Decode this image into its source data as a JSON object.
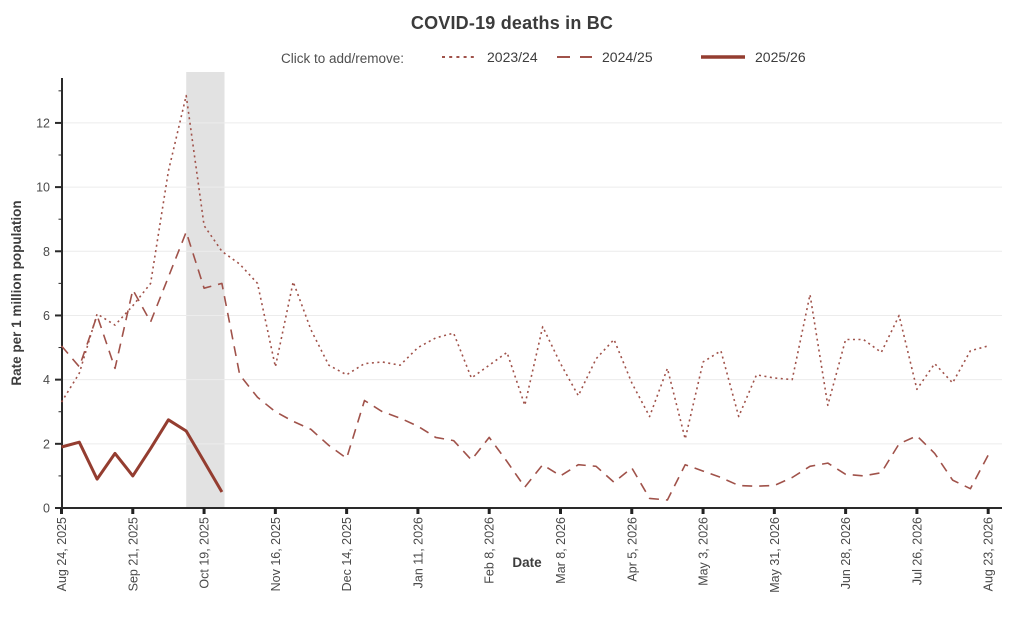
{
  "chart_data": {
    "type": "line",
    "title": "COVID-19 deaths in BC",
    "xlabel": "Date",
    "ylabel": "Rate per 1 million population",
    "legend_prompt": "Click to add/remove:",
    "legend_position": "top",
    "x_unit": "weekly",
    "x_ticks_every_n_weeks": 4,
    "x_tick_labels": [
      "Aug 24, 2025",
      "Sep 21, 2025",
      "Oct 19, 2025",
      "Nov 16, 2025",
      "Dec 14, 2025",
      "Jan 11, 2026",
      "Feb 8, 2026",
      "Mar 8, 2026",
      "Apr 5, 2026",
      "May 3, 2026",
      "May 31, 2026",
      "Jun 28, 2026",
      "Jul 26, 2026",
      "Aug 23, 2026"
    ],
    "ylim": [
      0,
      13.4
    ],
    "yticks": [
      0,
      2,
      4,
      6,
      8,
      10,
      12
    ],
    "grid": "horizontal",
    "highlight_band": {
      "from_week": 7,
      "to_week": 9.15,
      "color": "#e2e2e2"
    },
    "series": [
      {
        "name": "2023/24",
        "style": "dotted",
        "color": "#a0524a",
        "values": [
          3.3,
          4.2,
          6.05,
          5.7,
          6.3,
          7.0,
          10.5,
          12.85,
          8.8,
          8.0,
          7.6,
          7.0,
          4.4,
          7.05,
          5.55,
          4.45,
          4.15,
          4.5,
          4.55,
          4.45,
          5.0,
          5.3,
          5.45,
          4.05,
          4.45,
          4.85,
          3.2,
          5.65,
          4.5,
          3.5,
          4.65,
          5.25,
          3.9,
          2.85,
          4.35,
          2.15,
          4.55,
          4.9,
          2.85,
          4.15,
          4.05,
          4.0,
          6.65,
          3.2,
          5.25,
          5.25,
          4.85,
          6.0,
          3.7,
          4.5,
          3.9,
          4.9,
          5.05
        ]
      },
      {
        "name": "2024/25",
        "style": "dashed",
        "color": "#a0524a",
        "values": [
          5.05,
          4.4,
          6.0,
          4.35,
          6.8,
          5.8,
          7.2,
          8.6,
          6.85,
          7.0,
          4.15,
          3.45,
          3.0,
          2.7,
          2.45,
          1.95,
          1.55,
          3.35,
          3.0,
          2.8,
          2.55,
          2.2,
          2.1,
          1.5,
          2.2,
          1.45,
          0.65,
          1.35,
          1.0,
          1.35,
          1.3,
          0.8,
          1.25,
          0.3,
          0.25,
          1.35,
          1.15,
          0.95,
          0.7,
          0.68,
          0.7,
          0.95,
          1.3,
          1.4,
          1.05,
          1.0,
          1.1,
          2.0,
          2.25,
          1.7,
          0.87,
          0.6,
          1.65
        ]
      },
      {
        "name": "2025/26",
        "style": "solid",
        "color": "#943d30",
        "values": [
          1.9,
          2.05,
          0.9,
          1.7,
          1.0,
          1.85,
          2.75,
          2.4,
          1.45,
          0.5
        ]
      }
    ]
  }
}
